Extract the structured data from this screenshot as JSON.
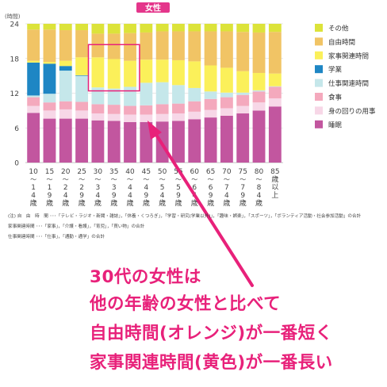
{
  "chart_data": {
    "type": "bar",
    "stacked": true,
    "title": "女性",
    "ylabel": "(時間)",
    "ylim": [
      0,
      24
    ],
    "yticks": [
      0,
      6,
      12,
      18,
      24
    ],
    "grid": true,
    "legend_position": "right",
    "categories": [
      {
        "top": "10",
        "mid": "〜",
        "bot": [
          "1",
          "4",
          "歳"
        ]
      },
      {
        "top": "15",
        "mid": "〜",
        "bot": [
          "1",
          "9",
          "歳"
        ]
      },
      {
        "top": "20",
        "mid": "〜",
        "bot": [
          "2",
          "4",
          "歳"
        ]
      },
      {
        "top": "25",
        "mid": "〜",
        "bot": [
          "2",
          "9",
          "歳"
        ]
      },
      {
        "top": "30",
        "mid": "〜",
        "bot": [
          "3",
          "4",
          "歳"
        ]
      },
      {
        "top": "35",
        "mid": "〜",
        "bot": [
          "3",
          "9",
          "歳"
        ]
      },
      {
        "top": "40",
        "mid": "〜",
        "bot": [
          "4",
          "4",
          "歳"
        ]
      },
      {
        "top": "45",
        "mid": "〜",
        "bot": [
          "4",
          "9",
          "歳"
        ]
      },
      {
        "top": "50",
        "mid": "〜",
        "bot": [
          "5",
          "4",
          "歳"
        ]
      },
      {
        "top": "55",
        "mid": "〜",
        "bot": [
          "5",
          "9",
          "歳"
        ]
      },
      {
        "top": "60",
        "mid": "〜",
        "bot": [
          "6",
          "4",
          "歳"
        ]
      },
      {
        "top": "65",
        "mid": "〜",
        "bot": [
          "6",
          "9",
          "歳"
        ]
      },
      {
        "top": "70",
        "mid": "〜",
        "bot": [
          "7",
          "4",
          "歳"
        ]
      },
      {
        "top": "75",
        "mid": "〜",
        "bot": [
          "7",
          "9",
          "歳"
        ]
      },
      {
        "top": "80",
        "mid": "〜",
        "bot": [
          "8",
          "4",
          "歳"
        ]
      },
      {
        "top": "85",
        "mid": "",
        "bot": [
          "歳",
          "以",
          "上"
        ]
      }
    ],
    "series": [
      {
        "name": "睡眠",
        "color": "#c2569f",
        "values": [
          8.6,
          7.6,
          7.6,
          7.6,
          7.3,
          7.2,
          7.0,
          7.0,
          7.1,
          7.2,
          7.5,
          7.8,
          8.1,
          8.5,
          9.0,
          9.7
        ]
      },
      {
        "name": "身の回りの用事",
        "color": "#f7d7e7",
        "values": [
          1.2,
          1.4,
          1.6,
          1.4,
          1.2,
          1.2,
          1.3,
          1.3,
          1.3,
          1.3,
          1.3,
          1.3,
          1.3,
          1.3,
          1.4,
          1.4
        ]
      },
      {
        "name": "食事",
        "color": "#f4a9bd",
        "values": [
          1.5,
          1.4,
          1.4,
          1.5,
          1.6,
          1.6,
          1.5,
          1.6,
          1.7,
          1.7,
          1.8,
          1.9,
          1.9,
          1.9,
          1.9,
          2.0
        ]
      },
      {
        "name": "仕事関連時間",
        "color": "#c5e7ea",
        "values": [
          0.3,
          1.5,
          5.3,
          4.5,
          2.9,
          2.8,
          3.3,
          3.9,
          3.8,
          3.2,
          2.3,
          1.3,
          0.8,
          0.4,
          0.2,
          0.1
        ]
      },
      {
        "name": "学業",
        "color": "#1e86c4",
        "values": [
          5.7,
          5.2,
          0.8,
          0.1,
          0,
          0,
          0,
          0,
          0,
          0,
          0,
          0,
          0,
          0,
          0,
          0
        ]
      },
      {
        "name": "家事関連時間",
        "color": "#fbf05a",
        "values": [
          0.3,
          0.3,
          0.9,
          3.1,
          5.2,
          5.1,
          4.5,
          4.0,
          3.9,
          4.3,
          4.6,
          4.5,
          4.3,
          3.7,
          3.0,
          2.2
        ]
      },
      {
        "name": "自由時間",
        "color": "#f1c465",
        "values": [
          5.4,
          5.6,
          5.3,
          4.7,
          4.1,
          4.4,
          4.8,
          4.7,
          4.9,
          5.0,
          5.2,
          5.9,
          6.3,
          6.8,
          7.0,
          7.2
        ]
      },
      {
        "name": "その他",
        "color": "#dce33a",
        "values": [
          1.0,
          1.0,
          1.1,
          1.1,
          1.7,
          1.7,
          1.6,
          1.5,
          1.3,
          1.3,
          1.3,
          1.3,
          1.3,
          1.4,
          1.5,
          1.4
        ]
      }
    ],
    "highlight": {
      "categories": [
        "30",
        "35",
        "40"
      ],
      "series": "家事関連時間",
      "color": "#e8217a"
    }
  },
  "legend_order": [
    "その他",
    "自由時間",
    "家事関連時間",
    "学業",
    "仕事関連時間",
    "食事",
    "身の回りの用事",
    "睡眠"
  ],
  "notes": [
    "(注) 自　由　時　間 ･･･「テレビ・ラジオ・新聞・雑誌」，「休養・くつろぎ」，「学習・研究(学業以外)」，「趣味・娯楽」，「スポーツ」，「ボランティア活動・社会参加活動」の合計",
    "家事関連時間 ･･･「家事」，「介護・看護」，「育児」，「買い物」の合計",
    "仕事関連時間 ･･･「仕事」，「通勤・通学」の合計"
  ],
  "callout": {
    "color": "#e8217a",
    "lines": [
      "30代の女性は",
      "他の年齢の女性と比べて",
      "自由時間(オレンジ)が一番短く",
      "家事関連時間(黄色)が一番長い"
    ]
  }
}
